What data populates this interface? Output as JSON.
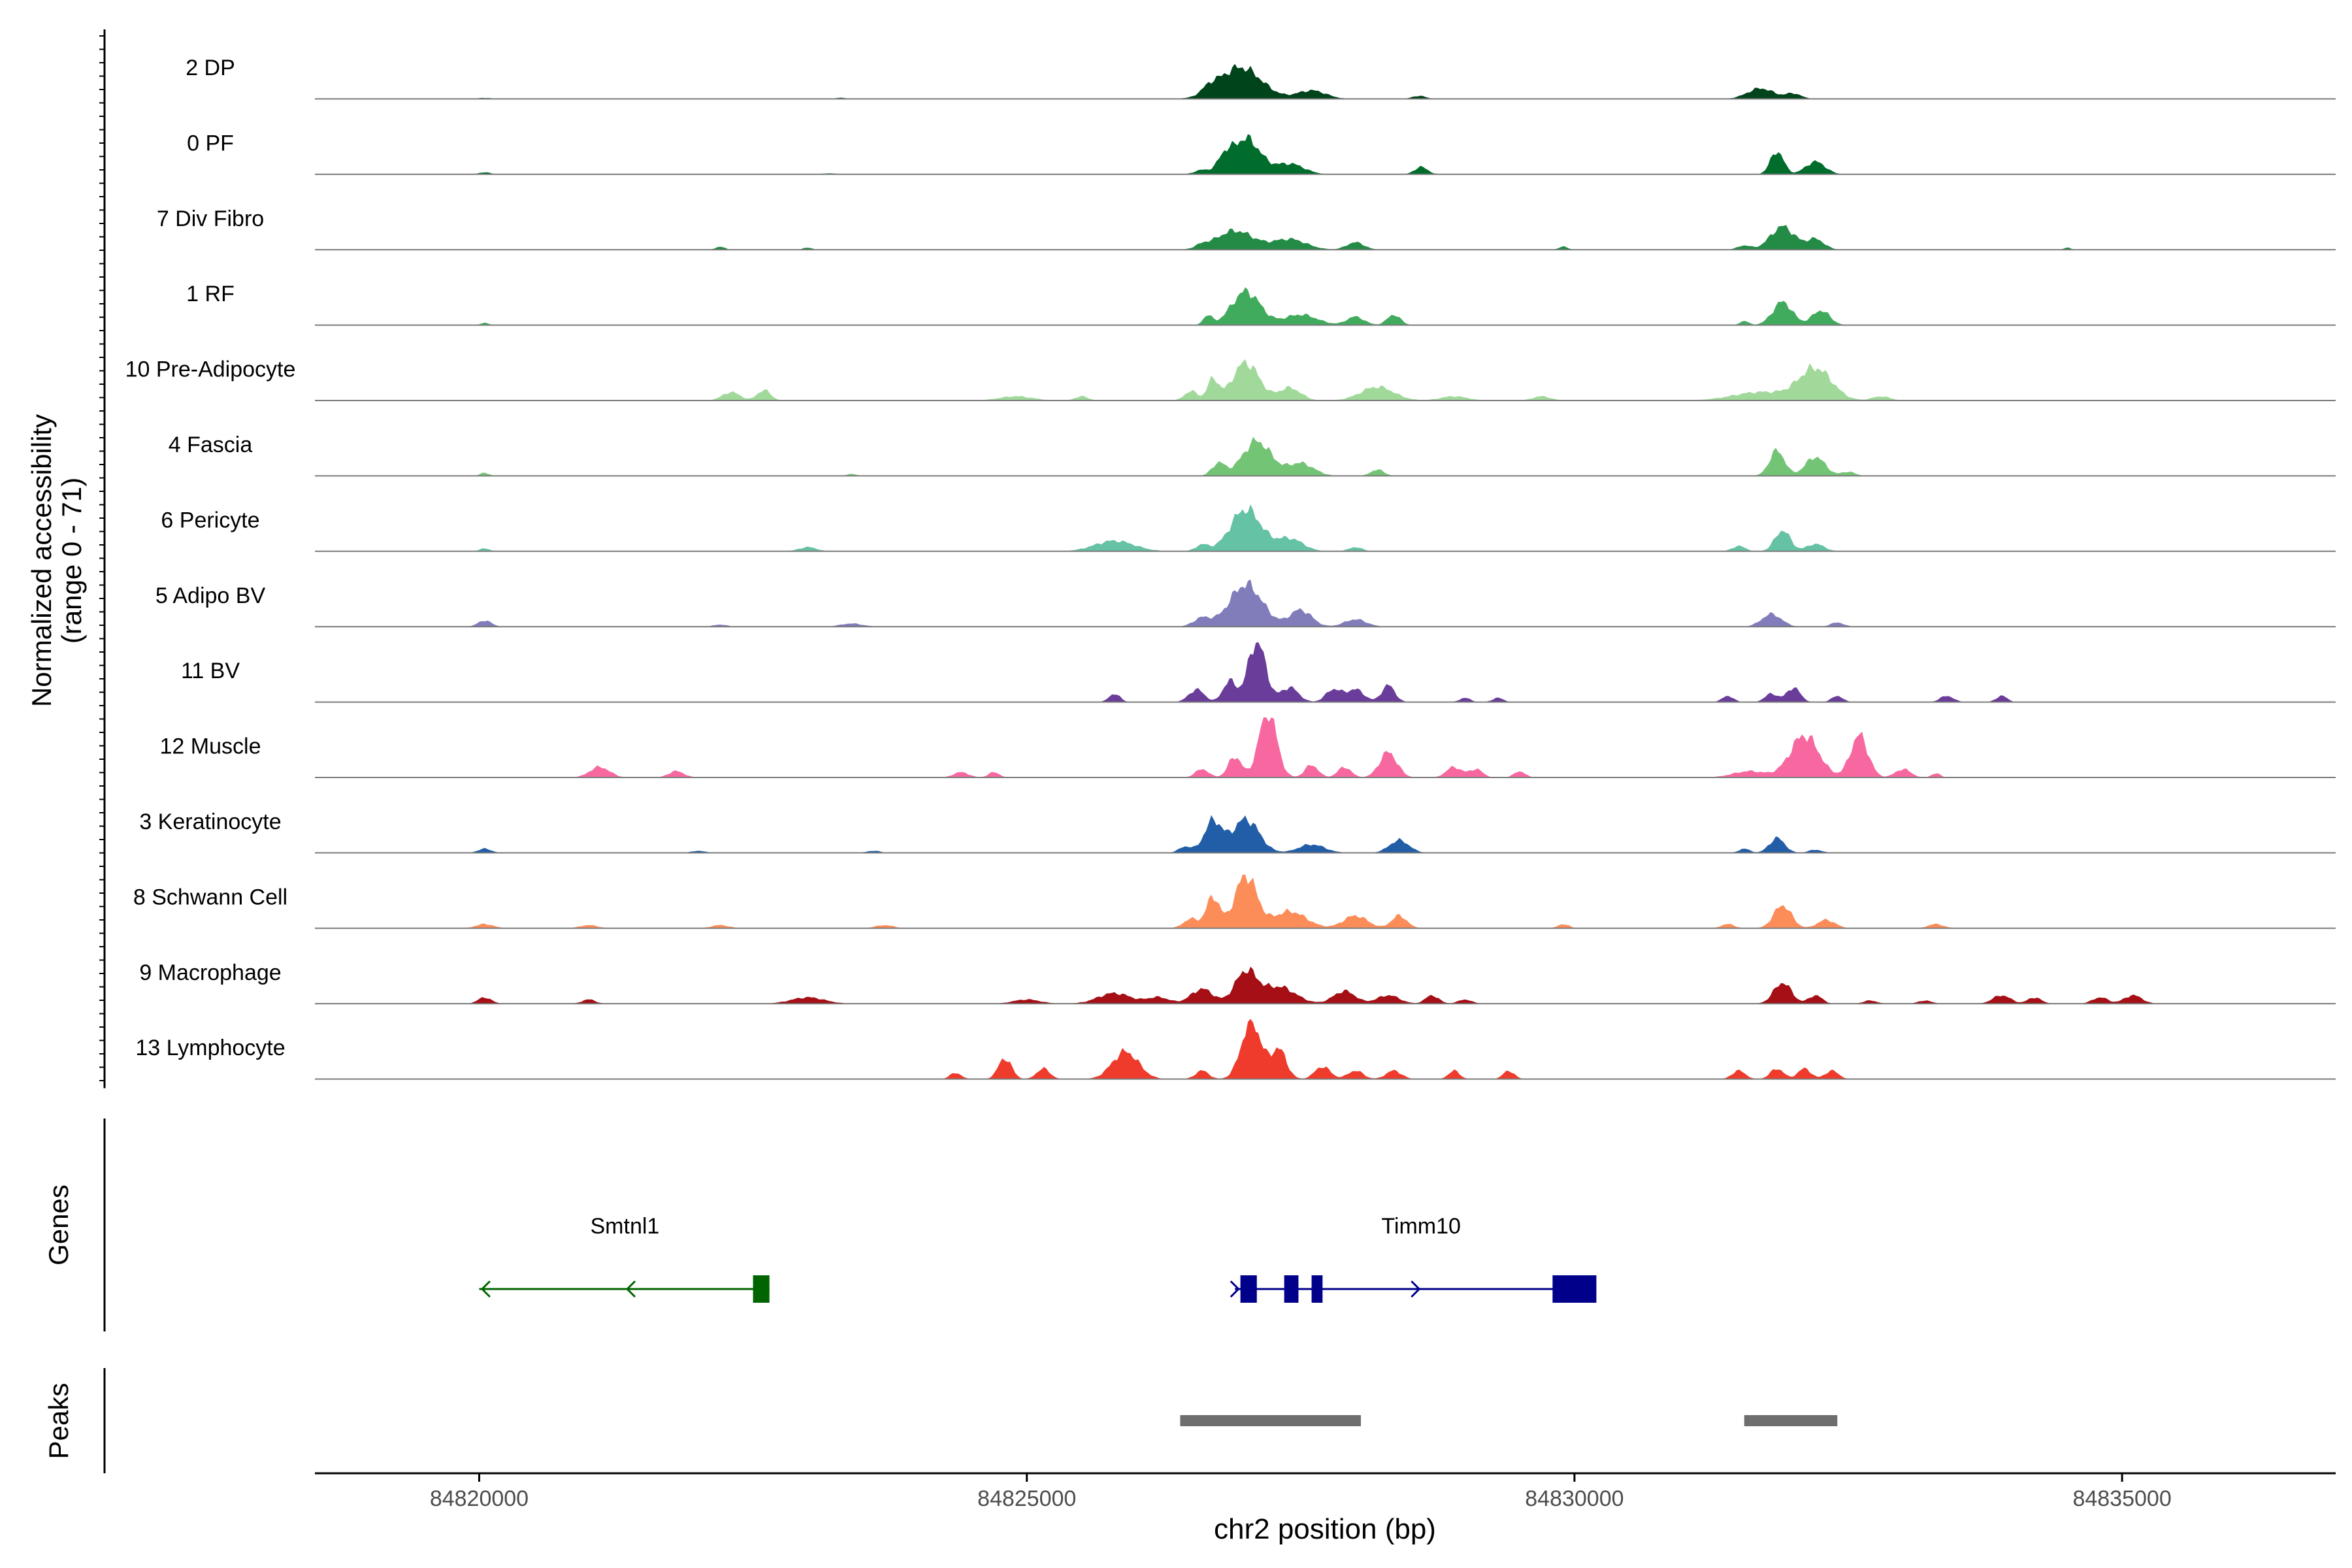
{
  "chart_data": {
    "type": "area",
    "title": "",
    "xlabel": "chr2 position (bp)",
    "ylabel": "Normalized accessibility",
    "ylabel_range": "(range 0 - 71)",
    "y_range": [
      0,
      71
    ],
    "x_range": [
      84818500,
      84836950
    ],
    "x_ticks": [
      84820000,
      84825000,
      84830000,
      84835000
    ],
    "x_tick_labels": [
      "84820000",
      "84825000",
      "84830000",
      "84835000"
    ],
    "grid": false,
    "tracks": [
      {
        "name": "2 DP",
        "color": "#00441b",
        "peaks": [
          [
            84820050,
            1,
            60
          ],
          [
            84823300,
            1,
            60
          ],
          [
            84826670,
            6,
            70
          ],
          [
            84826950,
            30,
            190
          ],
          [
            84827600,
            8,
            130
          ],
          [
            84828580,
            3,
            60
          ],
          [
            84831700,
            10,
            120
          ],
          [
            84832000,
            5,
            70
          ]
        ]
      },
      {
        "name": "0 PF",
        "color": "#006d2c",
        "peaks": [
          [
            84820050,
            2,
            50
          ],
          [
            84823200,
            1,
            60
          ],
          [
            84826600,
            4,
            70
          ],
          [
            84826800,
            12,
            60
          ],
          [
            84827000,
            34,
            130
          ],
          [
            84827400,
            10,
            130
          ],
          [
            84828600,
            7,
            60
          ],
          [
            84831850,
            22,
            60
          ],
          [
            84832200,
            12,
            90
          ]
        ]
      },
      {
        "name": "7 Div Fibro",
        "color": "#238b45",
        "peaks": [
          [
            84822200,
            3,
            40
          ],
          [
            84823000,
            2,
            40
          ],
          [
            84826600,
            3,
            60
          ],
          [
            84826900,
            18,
            170
          ],
          [
            84827400,
            10,
            150
          ],
          [
            84828000,
            7,
            80
          ],
          [
            84829900,
            3,
            40
          ],
          [
            84831550,
            4,
            60
          ],
          [
            84831900,
            22,
            110
          ],
          [
            84832200,
            10,
            80
          ],
          [
            84834500,
            2,
            30
          ]
        ]
      },
      {
        "name": "1 RF",
        "color": "#41ab5d",
        "peaks": [
          [
            84820050,
            2,
            40
          ],
          [
            84826650,
            9,
            40
          ],
          [
            84827000,
            32,
            130
          ],
          [
            84827500,
            10,
            150
          ],
          [
            84828000,
            8,
            80
          ],
          [
            84828350,
            10,
            60
          ],
          [
            84831550,
            4,
            40
          ],
          [
            84831900,
            22,
            90
          ],
          [
            84832250,
            14,
            80
          ]
        ]
      },
      {
        "name": "10 Pre-Adipocyte",
        "color": "#a1d99b",
        "peaks": [
          [
            84822300,
            8,
            80
          ],
          [
            84822600,
            10,
            60
          ],
          [
            84824900,
            4,
            150
          ],
          [
            84825500,
            4,
            60
          ],
          [
            84826500,
            9,
            60
          ],
          [
            84826700,
            20,
            50
          ],
          [
            84827000,
            36,
            120
          ],
          [
            84827400,
            12,
            100
          ],
          [
            84828200,
            13,
            150
          ],
          [
            84828900,
            4,
            120
          ],
          [
            84829700,
            4,
            80
          ],
          [
            84831700,
            8,
            250
          ],
          [
            84832200,
            30,
            150
          ],
          [
            84832800,
            4,
            80
          ]
        ]
      },
      {
        "name": "4 Fascia",
        "color": "#74c476",
        "peaks": [
          [
            84820050,
            3,
            40
          ],
          [
            84823400,
            2,
            40
          ],
          [
            84826750,
            12,
            60
          ],
          [
            84827100,
            33,
            130
          ],
          [
            84827500,
            12,
            120
          ],
          [
            84828200,
            6,
            60
          ],
          [
            84831850,
            24,
            70
          ],
          [
            84832200,
            18,
            90
          ],
          [
            84832500,
            4,
            60
          ]
        ]
      },
      {
        "name": "6 Pericyte",
        "color": "#66c2a4",
        "peaks": [
          [
            84820050,
            3,
            40
          ],
          [
            84823000,
            4,
            80
          ],
          [
            84825800,
            10,
            180
          ],
          [
            84826600,
            6,
            60
          ],
          [
            84827000,
            40,
            140
          ],
          [
            84827400,
            12,
            120
          ],
          [
            84828000,
            4,
            60
          ],
          [
            84831500,
            5,
            60
          ],
          [
            84831900,
            20,
            70
          ],
          [
            84832200,
            7,
            80
          ]
        ]
      },
      {
        "name": "5 Adipo BV",
        "color": "#807dba",
        "peaks": [
          [
            84820050,
            6,
            60
          ],
          [
            84822200,
            2,
            60
          ],
          [
            84823400,
            3,
            100
          ],
          [
            84826600,
            8,
            80
          ],
          [
            84827000,
            40,
            150
          ],
          [
            84827500,
            16,
            100
          ],
          [
            84828000,
            7,
            100
          ],
          [
            84831800,
            12,
            90
          ],
          [
            84832400,
            4,
            60
          ]
        ]
      },
      {
        "name": "11 BV",
        "color": "#6a3d9a",
        "peaks": [
          [
            84825800,
            8,
            50
          ],
          [
            84826550,
            12,
            70
          ],
          [
            84826850,
            20,
            60
          ],
          [
            84827100,
            58,
            80
          ],
          [
            84827400,
            14,
            80
          ],
          [
            84827800,
            12,
            70
          ],
          [
            84828000,
            12,
            80
          ],
          [
            84828300,
            16,
            60
          ],
          [
            84829000,
            4,
            50
          ],
          [
            84829300,
            4,
            50
          ],
          [
            84831400,
            6,
            50
          ],
          [
            84831800,
            8,
            60
          ],
          [
            84832000,
            14,
            60
          ],
          [
            84832400,
            6,
            50
          ],
          [
            84833400,
            6,
            60
          ],
          [
            84833900,
            6,
            50
          ]
        ]
      },
      {
        "name": "12 Muscle",
        "color": "#f768a1",
        "peaks": [
          [
            84821100,
            10,
            90
          ],
          [
            84821800,
            6,
            70
          ],
          [
            84824400,
            5,
            70
          ],
          [
            84824700,
            5,
            50
          ],
          [
            84826600,
            8,
            60
          ],
          [
            84826900,
            20,
            60
          ],
          [
            84827200,
            64,
            80
          ],
          [
            84827600,
            12,
            60
          ],
          [
            84827900,
            10,
            60
          ],
          [
            84828300,
            24,
            80
          ],
          [
            84828900,
            10,
            70
          ],
          [
            84829100,
            8,
            60
          ],
          [
            84829500,
            6,
            50
          ],
          [
            84831600,
            6,
            150
          ],
          [
            84832100,
            40,
            130
          ],
          [
            84832600,
            40,
            80
          ],
          [
            84833000,
            8,
            70
          ],
          [
            84833300,
            4,
            40
          ]
        ]
      },
      {
        "name": "3 Keratinocyte",
        "color": "#225ea8",
        "peaks": [
          [
            84820050,
            4,
            60
          ],
          [
            84822000,
            2,
            60
          ],
          [
            84823600,
            2,
            60
          ],
          [
            84826450,
            6,
            60
          ],
          [
            84826700,
            30,
            80
          ],
          [
            84827000,
            32,
            120
          ],
          [
            84827600,
            8,
            120
          ],
          [
            84828400,
            12,
            90
          ],
          [
            84831550,
            4,
            50
          ],
          [
            84831850,
            14,
            70
          ],
          [
            84832200,
            3,
            60
          ]
        ]
      },
      {
        "name": "8 Schwann Cell",
        "color": "#fc8d59",
        "peaks": [
          [
            84820050,
            4,
            80
          ],
          [
            84821000,
            3,
            80
          ],
          [
            84822200,
            3,
            80
          ],
          [
            84823700,
            3,
            80
          ],
          [
            84826500,
            9,
            70
          ],
          [
            84826700,
            30,
            60
          ],
          [
            84827000,
            50,
            100
          ],
          [
            84827400,
            16,
            150
          ],
          [
            84828000,
            12,
            110
          ],
          [
            84828400,
            12,
            70
          ],
          [
            84829900,
            4,
            50
          ],
          [
            84831400,
            4,
            60
          ],
          [
            84831900,
            22,
            80
          ],
          [
            84832300,
            8,
            80
          ],
          [
            84833300,
            4,
            70
          ]
        ]
      },
      {
        "name": "9 Macrophage",
        "color": "#a50f15",
        "peaks": [
          [
            84820050,
            6,
            60
          ],
          [
            84821000,
            4,
            60
          ],
          [
            84823000,
            6,
            150
          ],
          [
            84825000,
            4,
            120
          ],
          [
            84825800,
            10,
            150
          ],
          [
            84826200,
            6,
            100
          ],
          [
            84826600,
            14,
            100
          ],
          [
            84827000,
            30,
            100
          ],
          [
            84827300,
            16,
            150
          ],
          [
            84827900,
            12,
            100
          ],
          [
            84828300,
            8,
            100
          ],
          [
            84828700,
            8,
            60
          ],
          [
            84829000,
            4,
            60
          ],
          [
            84831900,
            20,
            80
          ],
          [
            84832200,
            8,
            60
          ],
          [
            84832700,
            3,
            60
          ],
          [
            84833200,
            3,
            60
          ],
          [
            84833900,
            8,
            80
          ],
          [
            84834200,
            6,
            60
          ],
          [
            84834800,
            6,
            70
          ],
          [
            84835100,
            8,
            80
          ]
        ]
      },
      {
        "name": "13 Lymphocyte",
        "color": "#ef3b2c",
        "peaks": [
          [
            84824350,
            6,
            50
          ],
          [
            84824800,
            20,
            60
          ],
          [
            84825150,
            10,
            60
          ],
          [
            84825900,
            26,
            120
          ],
          [
            84826600,
            8,
            60
          ],
          [
            84827050,
            55,
            90
          ],
          [
            84827300,
            28,
            70
          ],
          [
            84827700,
            12,
            70
          ],
          [
            84828000,
            8,
            70
          ],
          [
            84828350,
            8,
            70
          ],
          [
            84828900,
            8,
            50
          ],
          [
            84829400,
            8,
            50
          ],
          [
            84831500,
            8,
            60
          ],
          [
            84831850,
            10,
            60
          ],
          [
            84832100,
            10,
            60
          ],
          [
            84832350,
            8,
            60
          ]
        ]
      }
    ],
    "genes": [
      {
        "name": "Smtnl1",
        "color": "#006400",
        "strand": "-",
        "start": 84820000,
        "end": 84822650,
        "exons": [
          [
            84822500,
            84822650
          ]
        ],
        "label_pos": 84821330
      },
      {
        "name": "Timm10",
        "color": "#00008b",
        "strand": "+",
        "start": 84826900,
        "end": 84830200,
        "exons": [
          [
            84826950,
            84827100
          ],
          [
            84827350,
            84827480
          ],
          [
            84827600,
            84827700
          ],
          [
            84829800,
            84830200
          ]
        ],
        "label_pos": 84828600
      }
    ],
    "peak_regions": [
      [
        84826400,
        84828050
      ],
      [
        84831550,
        84832400
      ]
    ],
    "panel_labels": {
      "genes": "Genes",
      "peaks": "Peaks"
    },
    "peak_color": "#6e6e6e"
  }
}
